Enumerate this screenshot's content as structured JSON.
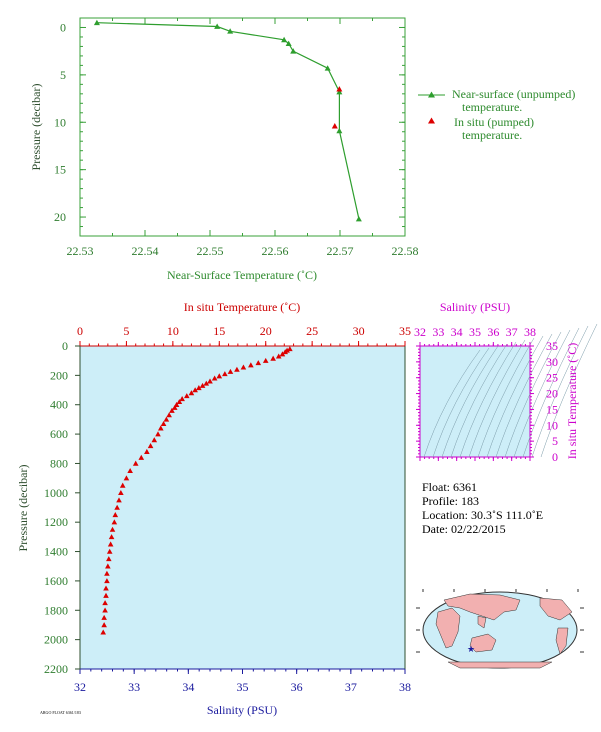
{
  "colors": {
    "green": "#2e9e2e",
    "axis_green": "#3aa13a",
    "red": "#dd0000",
    "blue": "#1a1a9e",
    "magenta": "#cc00cc",
    "panel_bg": "#cdeef8",
    "land": "#f2b0b0"
  },
  "chart_data": [
    {
      "type": "line",
      "name": "top",
      "xlabel": "Near-Surface Temperature (˚C)",
      "ylabel": "Pressure (decibar)",
      "xlim": [
        22.53,
        22.58
      ],
      "ylim": [
        22,
        -1
      ],
      "xticks": [
        "22.53",
        "22.54",
        "22.55",
        "22.56",
        "22.57",
        "22.58"
      ],
      "yticks": [
        "0",
        "5",
        "10",
        "15",
        "20"
      ],
      "series": [
        {
          "name": "Near-surface (unpumped) temperature.",
          "x": [
            22.5326,
            22.5511,
            22.5531,
            22.5614,
            22.5621,
            22.5628,
            22.5681,
            22.5699,
            22.5699,
            22.5729
          ],
          "y": [
            -0.5,
            -0.1,
            0.4,
            1.3,
            1.7,
            2.5,
            4.3,
            6.8,
            10.9,
            20.2
          ]
        },
        {
          "name": "In situ (pumped) temperature.",
          "x": [
            22.5699,
            22.5692
          ],
          "y": [
            6.5,
            10.4
          ]
        }
      ],
      "legend": "right"
    },
    {
      "type": "scatter",
      "name": "bottom",
      "x_top_label": "In situ Temperature (˚C)",
      "x_bottom_label": "Salinity (PSU)",
      "ylabel": "Pressure (decibar)",
      "temp_lim": [
        0,
        35
      ],
      "sal_lim": [
        32,
        38
      ],
      "ylim": [
        2200,
        0
      ],
      "temp_ticks": [
        "0",
        "5",
        "10",
        "15",
        "20",
        "25",
        "30",
        "35"
      ],
      "sal_ticks": [
        "32",
        "33",
        "34",
        "35",
        "36",
        "37",
        "38"
      ],
      "yticks": [
        "0",
        "200",
        "400",
        "600",
        "800",
        "1000",
        "1200",
        "1400",
        "1600",
        "1800",
        "2000",
        "2200"
      ],
      "series": [
        {
          "name": "In situ Temperature",
          "x": [
            22.6,
            22.3,
            22.1,
            21.8,
            21.4,
            20.8,
            20.0,
            19.2,
            18.4,
            17.6,
            16.9,
            16.2,
            15.6,
            15.0,
            14.5,
            14.0,
            13.6,
            13.2,
            12.8,
            12.4,
            12.0,
            11.5,
            11.0,
            10.7,
            10.4,
            10.2,
            9.9,
            9.6,
            9.3,
            9.0,
            8.7,
            8.4,
            8.0,
            7.6,
            7.2,
            6.6,
            6.0,
            5.4,
            5.0,
            4.6,
            4.4,
            4.2,
            4.0,
            3.8,
            3.7,
            3.5,
            3.4,
            3.3,
            3.2,
            3.1,
            3.0,
            2.9,
            2.9,
            2.8,
            2.8,
            2.7,
            2.7,
            2.6,
            2.6,
            2.5
          ],
          "y": [
            20,
            30,
            40,
            55,
            70,
            85,
            100,
            115,
            130,
            145,
            160,
            175,
            190,
            205,
            220,
            240,
            255,
            270,
            285,
            300,
            320,
            340,
            360,
            380,
            400,
            420,
            440,
            470,
            500,
            530,
            560,
            600,
            640,
            680,
            720,
            760,
            800,
            850,
            900,
            950,
            1000,
            1050,
            1100,
            1150,
            1200,
            1250,
            1300,
            1350,
            1400,
            1450,
            1500,
            1550,
            1600,
            1650,
            1700,
            1750,
            1800,
            1850,
            1900,
            1950
          ]
        }
      ]
    },
    {
      "type": "line",
      "name": "ts-inset",
      "xlabel": "Salinity (PSU)",
      "ylabel": "In situ Temperature (˚C)",
      "xlim": [
        32,
        38
      ],
      "ylim": [
        0,
        35
      ],
      "xticks": [
        "32",
        "33",
        "34",
        "35",
        "36",
        "37",
        "38"
      ],
      "yticks": [
        "0",
        "5",
        "10",
        "15",
        "20",
        "25",
        "30",
        "35"
      ]
    }
  ],
  "info": {
    "float": "Float:  6361",
    "profile": "Profile:  183",
    "location": "Location:  30.3˚S  111.0˚E",
    "date": "Date:  02/22/2015"
  },
  "legend": {
    "line1a": "Near-surface (unpumped)",
    "line1b": "temperature.",
    "line2a": "In situ (pumped)",
    "line2b": "temperature."
  },
  "footer": "ARGO FLOAT 6361/183"
}
